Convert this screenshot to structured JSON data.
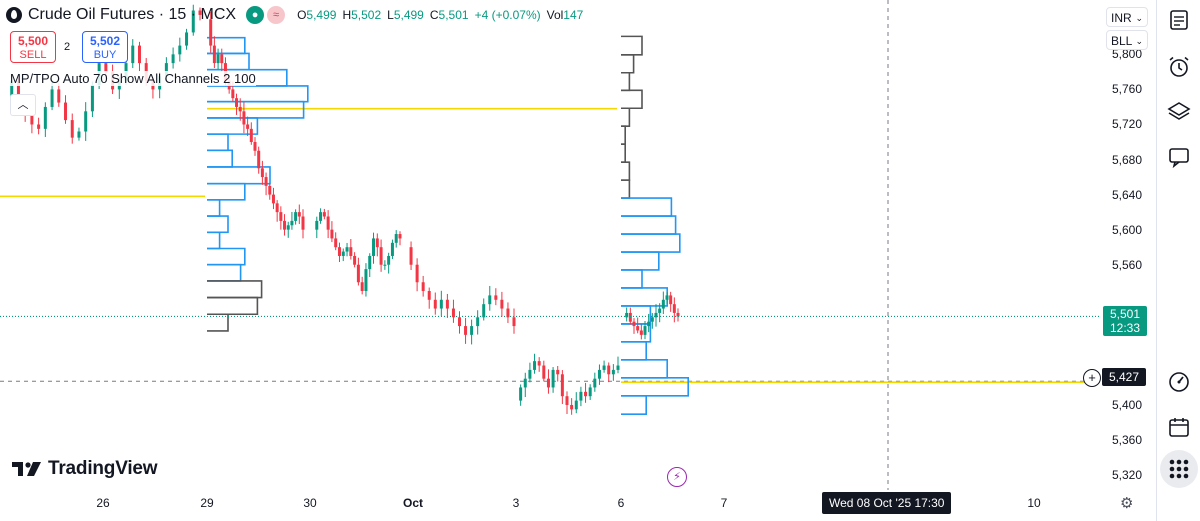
{
  "header": {
    "title": "Crude Oil Futures · 15 · MCX",
    "open_label": "O",
    "open": "5,499",
    "high_label": "H",
    "high": "5,502",
    "low_label": "L",
    "low": "5,499",
    "close_label": "C",
    "close": "5,501",
    "change": "+4 (+0.07%)",
    "volume_label": "Vol",
    "volume": "147"
  },
  "trade": {
    "sell_price": "5,500",
    "sell_label": "SELL",
    "spread": "2",
    "buy_price": "5,502",
    "buy_label": "BUY"
  },
  "indicator": {
    "label": "MP/TPO Auto 70 Show All Channels 2 100"
  },
  "currency": {
    "selected": "INR"
  },
  "mode": {
    "selected": "BLL"
  },
  "axis": {
    "price_tag": "5,501",
    "countdown": "12:33",
    "crosshair_price": "5,427",
    "crosshair_time": "Wed 08 Oct '25   17:30"
  },
  "logo": {
    "text": "TradingView"
  },
  "icons": [
    "symbol-logo-icon",
    "calendar-icon",
    "alarm-clock-icon",
    "layers-icon",
    "chat-icon",
    "speedometer-icon",
    "calendar-icon",
    "grid-icon",
    "settings-gear-icon",
    "flash-icon",
    "chevron-up-icon"
  ],
  "colors": {
    "up": "#089981",
    "down": "#f23645",
    "profile_blue": "#2196f3",
    "profile_gray": "#555555",
    "poc_yellow": "#f5d800",
    "price_line": "#089981",
    "crosshair": "#787b86"
  },
  "chart_data": {
    "type": "candlestick",
    "interval": "15",
    "symbol": "Crude Oil Futures · MCX",
    "x_ticks": [
      "26",
      "29",
      "30",
      "Oct",
      "3",
      "6",
      "7",
      "10"
    ],
    "y_ticks": [
      5320,
      5360,
      5400,
      5440,
      5480,
      5520,
      5560,
      5600,
      5640,
      5680,
      5720,
      5760,
      5800
    ],
    "y_tick_labels": [
      "5,320",
      "5,360",
      "5,400",
      "5,440",
      "5,480",
      "5,520",
      "5,560",
      "5,600",
      "5,640",
      "5,680",
      "5,720",
      "5,760",
      "5,800"
    ],
    "ylim": [
      5303,
      5862
    ],
    "last_price": 5501,
    "crosshair_price": 5427,
    "segments": [
      {
        "session": "26",
        "prices": [
          5750,
          5770,
          5745,
          5730,
          5720,
          5715,
          5740,
          5760,
          5745,
          5725,
          5705,
          5712,
          5735,
          5765,
          5790,
          5780,
          5760,
          5770,
          5790,
          5810,
          5790,
          5770,
          5760,
          5775,
          5790,
          5800,
          5810,
          5825,
          5850,
          5845
        ]
      },
      {
        "session": "29",
        "prices": [
          5840,
          5810,
          5790,
          5800,
          5790,
          5770,
          5760,
          5750,
          5740,
          5735,
          5720,
          5715,
          5700,
          5690,
          5670,
          5660,
          5650,
          5640,
          5630,
          5620,
          5610,
          5600,
          5605,
          5610,
          5620,
          5615,
          5600
        ]
      },
      {
        "session": "30",
        "prices": [
          5600,
          5610,
          5620,
          5615,
          5600,
          5590,
          5580,
          5570,
          5575,
          5580,
          5570,
          5560,
          5540,
          5530,
          5555,
          5570,
          5590,
          5580,
          5560,
          5560,
          5570,
          5585,
          5595,
          5590
        ]
      },
      {
        "session": "Oct",
        "prices": [
          5580,
          5560,
          5540,
          5530,
          5520,
          5510,
          5520,
          5510,
          5500,
          5490,
          5480,
          5490,
          5500,
          5515,
          5525,
          5520,
          5510,
          5500,
          5490
        ]
      },
      {
        "session": "3",
        "prices": [
          5405,
          5420,
          5430,
          5440,
          5450,
          5445,
          5430,
          5420,
          5440,
          5435,
          5410,
          5400,
          5395,
          5405,
          5415,
          5410,
          5420,
          5430,
          5440,
          5445,
          5435,
          5440,
          5445
        ]
      },
      {
        "session": "6",
        "prices": [
          5500,
          5505,
          5495,
          5490,
          5485,
          5480,
          5490,
          5495,
          5500,
          5505,
          5510,
          5520,
          5525,
          5515,
          5505,
          5501
        ]
      }
    ],
    "profiles": [
      {
        "session": "29",
        "poc": 5738,
        "bins": [
          {
            "price": 5810,
            "tpo": 9,
            "color": "blue"
          },
          {
            "price": 5792,
            "tpo": 10,
            "color": "blue"
          },
          {
            "price": 5773,
            "tpo": 19,
            "color": "blue"
          },
          {
            "price": 5755,
            "tpo": 24,
            "color": "blue"
          },
          {
            "price": 5737,
            "tpo": 23,
            "color": "blue"
          },
          {
            "price": 5718,
            "tpo": 12,
            "color": "blue"
          },
          {
            "price": 5700,
            "tpo": 5,
            "color": "blue"
          },
          {
            "price": 5681,
            "tpo": 6,
            "color": "blue"
          },
          {
            "price": 5662,
            "tpo": 15,
            "color": "blue"
          },
          {
            "price": 5643,
            "tpo": 9,
            "color": "blue"
          },
          {
            "price": 5625,
            "tpo": 3,
            "color": "blue"
          },
          {
            "price": 5606,
            "tpo": 5,
            "color": "blue"
          },
          {
            "price": 5588,
            "tpo": 3,
            "color": "blue"
          },
          {
            "price": 5569,
            "tpo": 9,
            "color": "blue"
          },
          {
            "price": 5551,
            "tpo": 8,
            "color": "blue"
          },
          {
            "price": 5532,
            "tpo": 13,
            "color": "gray"
          },
          {
            "price": 5513,
            "tpo": 12,
            "color": "gray"
          },
          {
            "price": 5494,
            "tpo": 5,
            "color": "gray"
          }
        ]
      },
      {
        "session": "3",
        "poc": 5426,
        "bins": [
          {
            "price": 5810,
            "tpo": 5,
            "color": "gray"
          },
          {
            "price": 5789,
            "tpo": 3,
            "color": "gray"
          },
          {
            "price": 5769,
            "tpo": 2,
            "color": "gray"
          },
          {
            "price": 5749,
            "tpo": 5,
            "color": "gray"
          },
          {
            "price": 5728,
            "tpo": 2,
            "color": "gray"
          },
          {
            "price": 5708,
            "tpo": 1,
            "color": "gray"
          },
          {
            "price": 5687,
            "tpo": 1,
            "color": "gray"
          },
          {
            "price": 5667,
            "tpo": 2,
            "color": "gray"
          },
          {
            "price": 5646,
            "tpo": 2,
            "color": "gray"
          },
          {
            "price": 5626,
            "tpo": 12,
            "color": "blue"
          },
          {
            "price": 5605,
            "tpo": 13,
            "color": "blue"
          },
          {
            "price": 5585,
            "tpo": 14,
            "color": "blue"
          },
          {
            "price": 5564,
            "tpo": 9,
            "color": "blue"
          },
          {
            "price": 5544,
            "tpo": 5,
            "color": "blue"
          },
          {
            "price": 5523,
            "tpo": 11,
            "color": "blue"
          },
          {
            "price": 5503,
            "tpo": 7,
            "color": "blue"
          },
          {
            "price": 5482,
            "tpo": 7,
            "color": "blue"
          },
          {
            "price": 5462,
            "tpo": 6,
            "color": "blue"
          },
          {
            "price": 5441,
            "tpo": 11,
            "color": "blue"
          },
          {
            "price": 5421,
            "tpo": 16,
            "color": "blue"
          },
          {
            "price": 5400,
            "tpo": 6,
            "color": "blue"
          }
        ]
      }
    ],
    "poc_lines": [
      {
        "price": 5638,
        "from_session": "26",
        "to_session": "29"
      },
      {
        "price": 5738,
        "from_session": "29",
        "to_session": "3"
      },
      {
        "price": 5426,
        "from_session": "3",
        "to_session": "future"
      }
    ]
  }
}
